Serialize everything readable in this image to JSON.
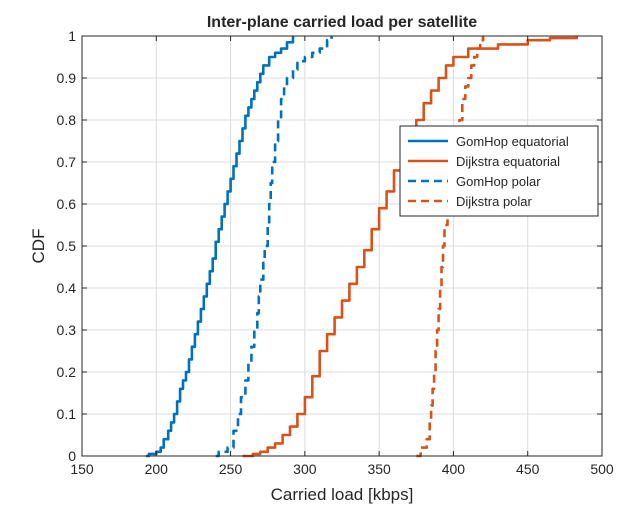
{
  "chart_data": {
    "type": "line",
    "title": "Inter-plane carried load per satellite",
    "xlabel": "Carried load [kbps]",
    "ylabel": "CDF",
    "xlim": [
      150,
      500
    ],
    "ylim": [
      0,
      1
    ],
    "xticks": [
      150,
      200,
      250,
      300,
      350,
      400,
      450,
      500
    ],
    "yticks": [
      0,
      0.1,
      0.2,
      0.3,
      0.4,
      0.5,
      0.6,
      0.7,
      0.8,
      0.9,
      1
    ],
    "grid": true,
    "legend_position": "top-right",
    "series": [
      {
        "name": "GomHop equatorial",
        "color": "#0072BD",
        "dash": "solid",
        "points": [
          [
            193,
            0
          ],
          [
            195,
            0.005
          ],
          [
            200,
            0.01
          ],
          [
            203,
            0.02
          ],
          [
            205,
            0.04
          ],
          [
            208,
            0.06
          ],
          [
            210,
            0.08
          ],
          [
            212,
            0.1
          ],
          [
            214,
            0.13
          ],
          [
            216,
            0.16
          ],
          [
            218,
            0.18
          ],
          [
            220,
            0.2
          ],
          [
            222,
            0.23
          ],
          [
            224,
            0.26
          ],
          [
            226,
            0.29
          ],
          [
            228,
            0.32
          ],
          [
            230,
            0.35
          ],
          [
            232,
            0.38
          ],
          [
            234,
            0.41
          ],
          [
            236,
            0.44
          ],
          [
            238,
            0.47
          ],
          [
            240,
            0.51
          ],
          [
            242,
            0.54
          ],
          [
            244,
            0.57
          ],
          [
            246,
            0.6
          ],
          [
            248,
            0.63
          ],
          [
            250,
            0.66
          ],
          [
            252,
            0.69
          ],
          [
            254,
            0.72
          ],
          [
            256,
            0.75
          ],
          [
            258,
            0.78
          ],
          [
            260,
            0.81
          ],
          [
            262,
            0.83
          ],
          [
            264,
            0.85
          ],
          [
            266,
            0.87
          ],
          [
            268,
            0.89
          ],
          [
            270,
            0.91
          ],
          [
            272,
            0.93
          ],
          [
            276,
            0.95
          ],
          [
            280,
            0.96
          ],
          [
            284,
            0.97
          ],
          [
            288,
            0.985
          ],
          [
            292,
            1
          ]
        ]
      },
      {
        "name": "Dijkstra equatorial",
        "color": "#D95319",
        "dash": "solid",
        "points": [
          [
            258,
            0
          ],
          [
            265,
            0.005
          ],
          [
            270,
            0.01
          ],
          [
            275,
            0.02
          ],
          [
            280,
            0.03
          ],
          [
            285,
            0.05
          ],
          [
            290,
            0.07
          ],
          [
            295,
            0.1
          ],
          [
            300,
            0.14
          ],
          [
            305,
            0.19
          ],
          [
            310,
            0.25
          ],
          [
            315,
            0.29
          ],
          [
            320,
            0.33
          ],
          [
            325,
            0.37
          ],
          [
            330,
            0.41
          ],
          [
            335,
            0.45
          ],
          [
            340,
            0.49
          ],
          [
            345,
            0.54
          ],
          [
            350,
            0.59
          ],
          [
            355,
            0.63
          ],
          [
            360,
            0.68
          ],
          [
            365,
            0.72
          ],
          [
            370,
            0.76
          ],
          [
            375,
            0.8
          ],
          [
            380,
            0.84
          ],
          [
            385,
            0.87
          ],
          [
            390,
            0.9
          ],
          [
            395,
            0.93
          ],
          [
            400,
            0.95
          ],
          [
            410,
            0.97
          ],
          [
            430,
            0.98
          ],
          [
            450,
            0.99
          ],
          [
            465,
            0.995
          ],
          [
            483,
            1
          ]
        ]
      },
      {
        "name": "GomHop polar",
        "color": "#0072BD",
        "dash": "dashed",
        "points": [
          [
            240,
            0
          ],
          [
            242,
            0.01
          ],
          [
            248,
            0.02
          ],
          [
            252,
            0.06
          ],
          [
            255,
            0.1
          ],
          [
            257,
            0.14
          ],
          [
            260,
            0.18
          ],
          [
            262,
            0.22
          ],
          [
            264,
            0.26
          ],
          [
            266,
            0.3
          ],
          [
            268,
            0.34
          ],
          [
            269,
            0.38
          ],
          [
            270,
            0.42
          ],
          [
            272,
            0.46
          ],
          [
            273,
            0.5
          ],
          [
            275,
            0.55
          ],
          [
            276,
            0.6
          ],
          [
            277,
            0.65
          ],
          [
            278,
            0.7
          ],
          [
            280,
            0.75
          ],
          [
            282,
            0.8
          ],
          [
            284,
            0.85
          ],
          [
            286,
            0.88
          ],
          [
            288,
            0.9
          ],
          [
            292,
            0.92
          ],
          [
            295,
            0.94
          ],
          [
            300,
            0.95
          ],
          [
            305,
            0.96
          ],
          [
            310,
            0.97
          ],
          [
            315,
            0.99
          ],
          [
            318,
            1
          ]
        ]
      },
      {
        "name": "Dijkstra polar",
        "color": "#D95319",
        "dash": "dashed",
        "points": [
          [
            375,
            0
          ],
          [
            378,
            0.02
          ],
          [
            382,
            0.04
          ],
          [
            384,
            0.08
          ],
          [
            385,
            0.12
          ],
          [
            386,
            0.16
          ],
          [
            387,
            0.2
          ],
          [
            388,
            0.25
          ],
          [
            389,
            0.3
          ],
          [
            390,
            0.35
          ],
          [
            391,
            0.4
          ],
          [
            392,
            0.45
          ],
          [
            393,
            0.5
          ],
          [
            394,
            0.55
          ],
          [
            396,
            0.6
          ],
          [
            398,
            0.65
          ],
          [
            400,
            0.7
          ],
          [
            402,
            0.75
          ],
          [
            404,
            0.8
          ],
          [
            406,
            0.85
          ],
          [
            408,
            0.88
          ],
          [
            410,
            0.9
          ],
          [
            412,
            0.93
          ],
          [
            414,
            0.95
          ],
          [
            416,
            0.97
          ],
          [
            418,
            0.99
          ],
          [
            420,
            1
          ]
        ]
      }
    ]
  }
}
